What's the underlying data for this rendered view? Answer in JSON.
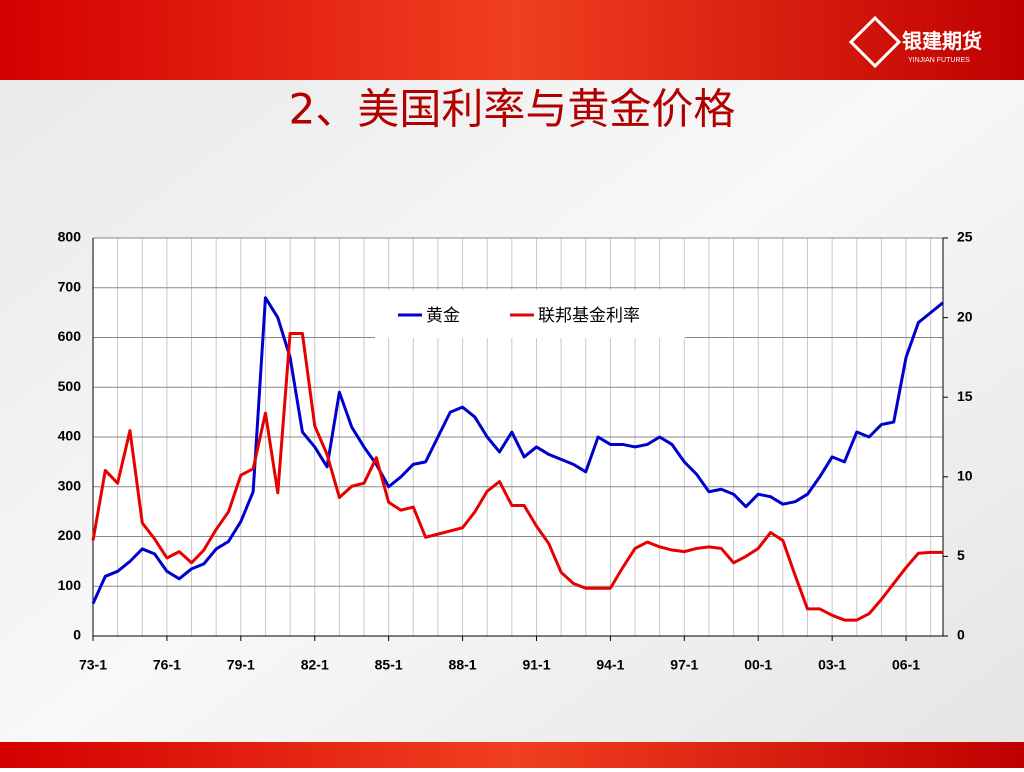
{
  "header": {
    "title": "2、美国利率与黄金价格",
    "logo": "银建期货",
    "logo_sub": "YINJIAN FUTURES"
  },
  "chart_data": {
    "type": "line",
    "categories": [
      "73-1",
      null,
      null,
      null,
      null,
      null,
      "76-1",
      null,
      null,
      null,
      null,
      null,
      "79-1",
      null,
      null,
      null,
      null,
      null,
      "82-1",
      null,
      null,
      null,
      null,
      null,
      "85-1",
      null,
      null,
      null,
      null,
      null,
      "88-1",
      null,
      null,
      null,
      null,
      null,
      "91-1",
      null,
      null,
      null,
      null,
      null,
      "94-1",
      null,
      null,
      null,
      null,
      null,
      "97-1",
      null,
      null,
      null,
      null,
      null,
      "00-1",
      null,
      null,
      null,
      null,
      null,
      "03-1",
      null,
      null,
      null,
      null,
      null,
      "06-1",
      null,
      null,
      null
    ],
    "series": [
      {
        "name": "黄金",
        "color": "#0000cc",
        "values": [
          65,
          120,
          130,
          150,
          175,
          165,
          130,
          115,
          135,
          145,
          175,
          190,
          230,
          290,
          680,
          640,
          560,
          410,
          380,
          340,
          490,
          420,
          380,
          345,
          300,
          320,
          345,
          350,
          400,
          450,
          460,
          440,
          400,
          370,
          410,
          360,
          380,
          365,
          355,
          345,
          330,
          400,
          385,
          385,
          380,
          385,
          400,
          385,
          350,
          325,
          290,
          295,
          285,
          260,
          285,
          280,
          265,
          270,
          285,
          320,
          360,
          350,
          410,
          400,
          425,
          430,
          560,
          630,
          650,
          670
        ]
      },
      {
        "name": "联邦基金利率",
        "color": "#e60000",
        "axis": "y2",
        "values": [
          6,
          10.4,
          9.6,
          12.9,
          7.1,
          6.1,
          4.9,
          5.3,
          4.6,
          5.4,
          6.7,
          7.8,
          10.1,
          10.5,
          14,
          9,
          19,
          19,
          13.2,
          11.4,
          8.7,
          9.4,
          9.6,
          11.2,
          8.4,
          7.9,
          8.1,
          6.2,
          6.4,
          6.6,
          6.8,
          7.8,
          9.1,
          9.7,
          8.2,
          8.2,
          6.9,
          5.8,
          4.0,
          3.3,
          3.0,
          3.0,
          3.0,
          4.3,
          5.5,
          5.9,
          5.6,
          5.4,
          5.3,
          5.5,
          5.6,
          5.5,
          4.6,
          5.0,
          5.5,
          6.5,
          6.0,
          3.8,
          1.7,
          1.7,
          1.3,
          1.0,
          1.0,
          1.4,
          2.3,
          3.3,
          4.3,
          5.2,
          5.25,
          5.25
        ]
      }
    ],
    "ylim": [
      0,
      800
    ],
    "yticks": [
      0,
      100,
      200,
      300,
      400,
      500,
      600,
      700,
      800
    ],
    "y2lim": [
      0,
      25
    ],
    "y2ticks": [
      0,
      5,
      10,
      15,
      20,
      25
    ],
    "grid": true
  }
}
